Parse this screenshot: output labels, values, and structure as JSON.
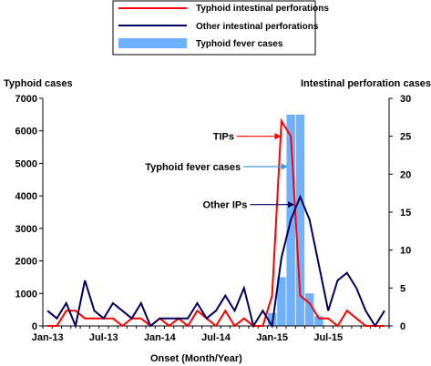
{
  "chart_data": {
    "type": "line",
    "legend": {
      "placement": "top-center",
      "entries": [
        {
          "label": "Typhoid intestinal perforations",
          "kind": "line",
          "color": "#ff0000"
        },
        {
          "label": "Other intestinal perforations",
          "kind": "line",
          "color": "#00005a"
        },
        {
          "label": "Typhoid fever cases",
          "kind": "bar",
          "color": "#6fb1ff"
        }
      ]
    },
    "xlabel": "Onset (Month/Year)",
    "ylabel_left": "Typhoid cases",
    "ylabel_right": "Intestinal perforation cases",
    "y_left_range": [
      0,
      7000
    ],
    "y_left_ticks": [
      "0",
      "1000",
      "2000",
      "3000",
      "4000",
      "5000",
      "6000",
      "7000"
    ],
    "y_right_range": [
      0,
      30
    ],
    "y_right_ticks": [
      "0",
      "5",
      "10",
      "15",
      "20",
      "25",
      "30"
    ],
    "x_ticks": [
      "Jan-13",
      "Jul-13",
      "Jan-14",
      "Jul-14",
      "Jan-15",
      "Jul-15"
    ],
    "x_tick_months": [
      0,
      6,
      12,
      18,
      24,
      30
    ],
    "month_count": 37,
    "grid": false,
    "series": [
      {
        "name": "Typhoid intestinal perforations",
        "axis": "right",
        "color": "#ff0000",
        "values": [
          0,
          0,
          2,
          2,
          1,
          1,
          1,
          1,
          0,
          1,
          1,
          0,
          1,
          0,
          1,
          0,
          2,
          1,
          0,
          2,
          0,
          1,
          0,
          0,
          4,
          27,
          25,
          4,
          3,
          1,
          1,
          0,
          2,
          1,
          0,
          0,
          0
        ]
      },
      {
        "name": "Other intestinal perforations",
        "axis": "right",
        "color": "#00005a",
        "values": [
          2,
          1,
          3,
          0,
          6,
          2,
          1,
          3,
          2,
          1,
          3,
          0,
          1,
          1,
          1,
          1,
          3,
          1,
          2,
          4,
          2,
          5,
          0,
          2,
          0,
          9,
          14,
          17,
          14,
          8,
          2,
          6,
          7,
          5,
          2,
          0,
          2
        ]
      },
      {
        "name": "Typhoid fever cases",
        "axis": "left",
        "kind": "bar",
        "color": "#6fb1ff",
        "values": [
          0,
          0,
          0,
          0,
          0,
          0,
          0,
          0,
          0,
          0,
          0,
          0,
          0,
          0,
          0,
          0,
          0,
          0,
          0,
          0,
          0,
          0,
          0,
          0,
          400,
          1500,
          6500,
          6500,
          1000,
          300,
          0,
          0,
          0,
          0,
          0,
          0,
          0
        ]
      }
    ],
    "annotations": [
      {
        "text": "TIPs",
        "month": 25.3,
        "value": 25,
        "series": "Typhoid intestinal perforations"
      },
      {
        "text": "Typhoid fever cases",
        "month": 26,
        "value": 21,
        "series": "Typhoid fever cases"
      },
      {
        "text": "Other IPs",
        "month": 26.7,
        "value": 16,
        "series": "Other intestinal perforations"
      }
    ]
  }
}
